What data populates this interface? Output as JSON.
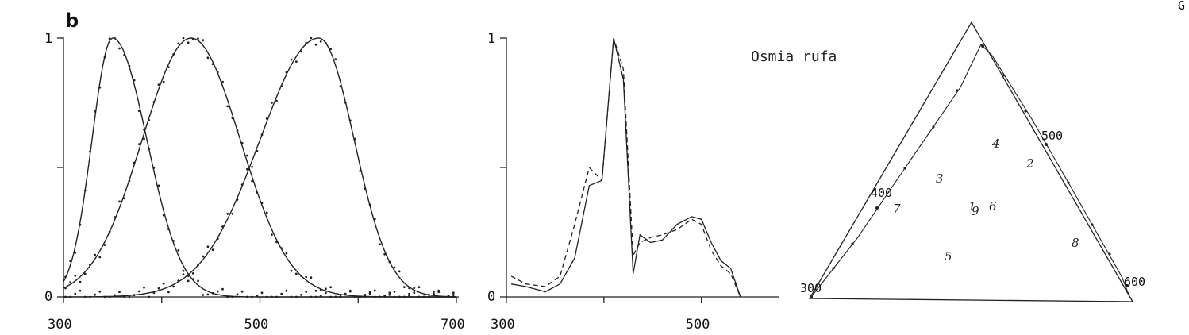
{
  "panel_letter": "b",
  "corner_mark": "G",
  "species": "Osmia rufa",
  "chart_data": [
    {
      "type": "line",
      "xlim": [
        300,
        700
      ],
      "ylim": [
        0,
        1
      ],
      "x_ticks": [
        300,
        500,
        700
      ],
      "y_tick_labels": [
        {
          "value": 0,
          "label": "0"
        },
        {
          "value": 1,
          "label": "1"
        }
      ],
      "y_minor_ticks": [
        0.5
      ],
      "x_minor_ticks": [
        400,
        600
      ],
      "curves": [
        {
          "peak": 350,
          "sigma_left": 21,
          "sigma_right": 35,
          "color": "#222222"
        },
        {
          "peak": 430,
          "sigma_left": 50,
          "sigma_right": 50,
          "color": "#222222"
        },
        {
          "peak": 560,
          "sigma_left": 60,
          "sigma_right": 36,
          "color": "#222222"
        }
      ],
      "dotted_points": "dense dots follow each curve",
      "grid": false
    },
    {
      "type": "line",
      "xlim": [
        300,
        580
      ],
      "ylim": [
        0,
        1
      ],
      "x_ticks": [
        300,
        500
      ],
      "y_tick_labels": [
        {
          "value": 0,
          "label": "0"
        },
        {
          "value": 1,
          "label": "1"
        }
      ],
      "y_minor_ticks": [
        0.5
      ],
      "x_minor_ticks": [
        400
      ],
      "series": [
        {
          "style": "solid",
          "x": [
            305,
            320,
            340,
            355,
            370,
            385,
            398,
            410,
            420,
            430,
            437,
            448,
            460,
            475,
            490,
            500,
            510,
            520,
            530,
            540
          ],
          "y": [
            0.05,
            0.04,
            0.02,
            0.05,
            0.15,
            0.43,
            0.45,
            1.0,
            0.84,
            0.09,
            0.24,
            0.21,
            0.22,
            0.28,
            0.31,
            0.3,
            0.21,
            0.14,
            0.11,
            0.0
          ]
        },
        {
          "style": "dashed",
          "x": [
            305,
            320,
            340,
            355,
            370,
            385,
            398,
            410,
            420,
            430,
            437,
            448,
            460,
            475,
            490,
            500,
            510,
            520,
            530,
            540
          ],
          "y": [
            0.08,
            0.05,
            0.04,
            0.08,
            0.28,
            0.5,
            0.45,
            1.0,
            0.88,
            0.16,
            0.21,
            0.23,
            0.24,
            0.26,
            0.3,
            0.28,
            0.18,
            0.12,
            0.09,
            0.0
          ]
        }
      ],
      "grid": false
    },
    {
      "type": "scatter",
      "note": "color triangle with spectral locus",
      "wavelength_labels": [
        "300",
        "400",
        "500",
        "600"
      ],
      "point_labels": [
        "1",
        "2",
        "3",
        "4",
        "5",
        "6",
        "7",
        "8",
        "9"
      ]
    }
  ]
}
